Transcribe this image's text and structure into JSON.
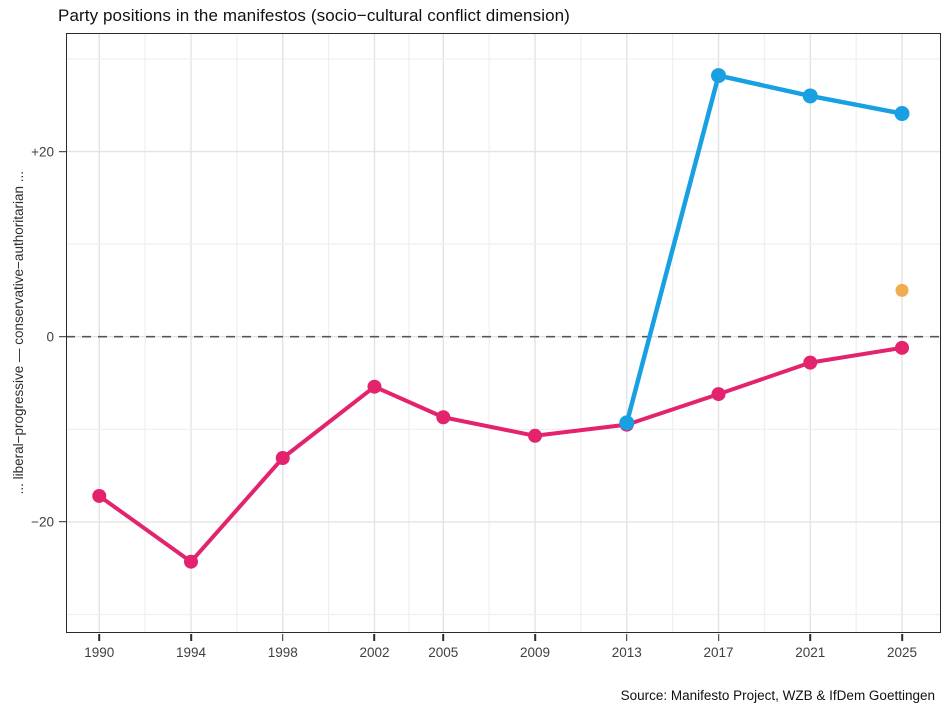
{
  "title": "Party positions in the manifestos (socio−cultural conflict dimension)",
  "source_caption": "Source: Manifesto Project, WZB & IfDem Goettingen",
  "colors": {
    "pink_series": "#E3236E",
    "blue_series": "#18A0E2",
    "orange_point": "#F0AC4E",
    "grid_major": "#e3e3e3",
    "grid_minor": "#efefef",
    "zero_line": "#555555",
    "panel_border": "#2a2a2a",
    "tick_text": "#404040"
  },
  "chart_data": {
    "type": "line",
    "title": "Party positions in the manifestos (socio−cultural conflict dimension)",
    "xlabel": "",
    "ylabel": "... liberal−progressive — conservative−authoritarian ...",
    "legend_position": "none",
    "grid": "on",
    "x_domain": [
      1988.55,
      2026.7
    ],
    "y_domain": [
      -32,
      32.8
    ],
    "x_ticks": [
      1990,
      1994,
      1998,
      2002,
      2005,
      2009,
      2013,
      2017,
      2021,
      2025
    ],
    "x_minor_gridlines": [
      1992,
      1996,
      2000,
      2003.5,
      2007,
      2011,
      2015,
      2019,
      2023
    ],
    "y_ticks": [
      {
        "label": "+20",
        "value": 20
      },
      {
        "label": "0",
        "value": 0
      },
      {
        "label": "−20",
        "value": -20
      }
    ],
    "y_major_gridlines": [
      20,
      0,
      -20
    ],
    "y_minor_gridlines": [
      30,
      10,
      -10,
      -30
    ],
    "reference_line": {
      "y": 0,
      "style": "dashed",
      "color": "#555555"
    },
    "series": [
      {
        "name": "pink-party",
        "color": "#E3236E",
        "marker_radius": 7,
        "line_width": 4,
        "x": [
          1990,
          1994,
          1998,
          2002,
          2005,
          2009,
          2013,
          2017,
          2021,
          2025
        ],
        "y": [
          -17.2,
          -24.3,
          -13.1,
          -5.4,
          -8.7,
          -10.7,
          -9.5,
          -6.2,
          -2.8,
          -1.2
        ]
      },
      {
        "name": "blue-party",
        "color": "#18A0E2",
        "marker_radius": 7.5,
        "line_width": 4.5,
        "x": [
          2013,
          2017,
          2021,
          2025
        ],
        "y": [
          -9.3,
          28.2,
          26.0,
          24.1
        ]
      },
      {
        "name": "orange-party",
        "color": "#F0AC4E",
        "marker_radius": 6.5,
        "line_width": 0,
        "points_only": true,
        "x": [
          2025
        ],
        "y": [
          5.0
        ]
      }
    ]
  }
}
